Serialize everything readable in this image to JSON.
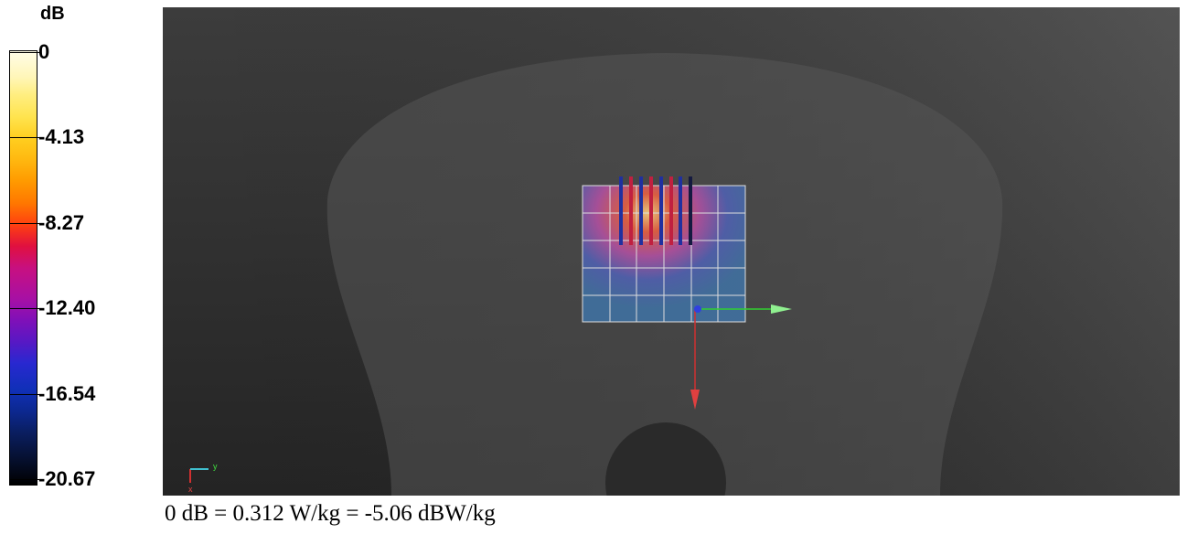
{
  "colorbar": {
    "unit": "dB",
    "ticks": [
      "0",
      "-4.13",
      "-8.27",
      "-12.40",
      "-16.54",
      "-20.67"
    ]
  },
  "axes": {
    "y": "y",
    "x": "x"
  },
  "caption": "0 dB = 0.312 W/kg = -5.06 dBW/kg"
}
